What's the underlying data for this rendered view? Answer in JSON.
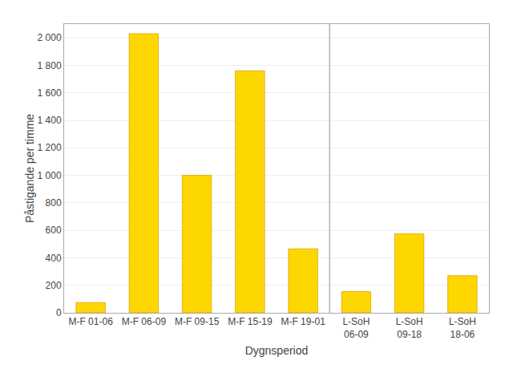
{
  "chart_data": {
    "type": "bar",
    "categories": [
      "M-F 01-06",
      "M-F 06-09",
      "M-F 09-15",
      "M-F 15-19",
      "M-F 19-01",
      "L-SoH\n06-09",
      "L-SoH\n09-18",
      "L-SoH\n18-06"
    ],
    "values": [
      75,
      2030,
      1000,
      1760,
      465,
      155,
      575,
      270
    ],
    "color": "#FFD700",
    "xlabel": "Dygnsperiod",
    "ylabel": "Påstigande per timme",
    "ylim": [
      0,
      2100
    ],
    "yticks": [
      0,
      200,
      400,
      600,
      800,
      {
        "value": 1000,
        "label": "1 000"
      },
      {
        "value": 1200,
        "label": "1 200"
      },
      {
        "value": 1400,
        "label": "1 400"
      },
      {
        "value": 1600,
        "label": "1 600"
      },
      {
        "value": 1800,
        "label": "1 800"
      },
      {
        "value": 2000,
        "label": "2 000"
      }
    ],
    "grid": true
  }
}
